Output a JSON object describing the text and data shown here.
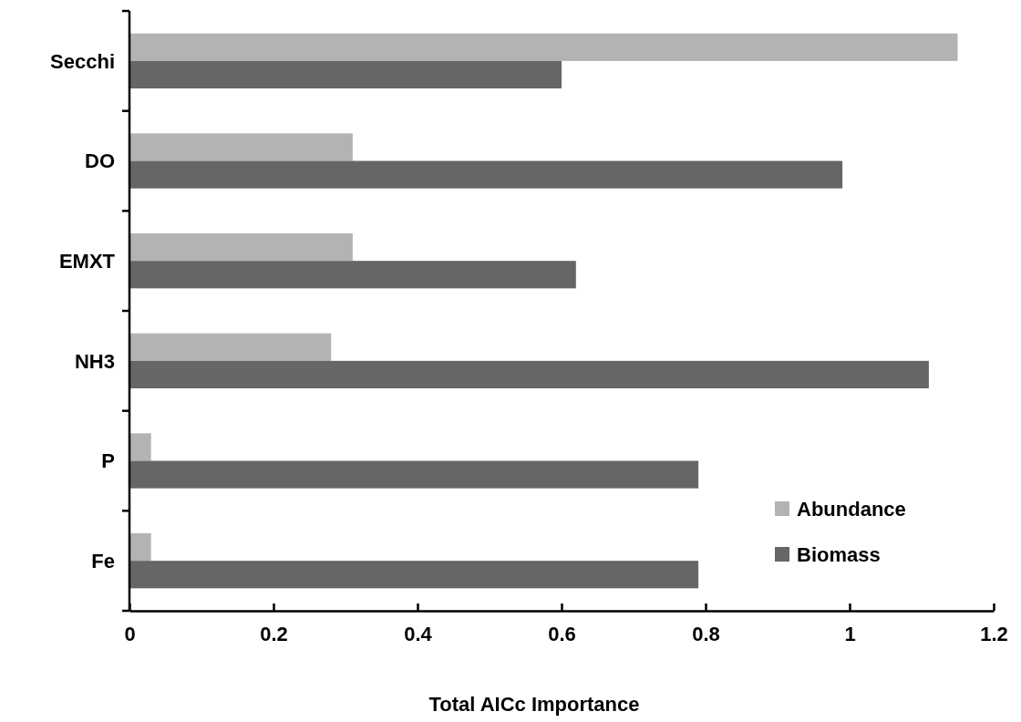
{
  "chart_data": {
    "type": "bar",
    "orientation": "horizontal",
    "xlabel": "Total AICc Importance",
    "categories": [
      "Secchi",
      "DO",
      "EMXT",
      "NH3",
      "P",
      "Fe"
    ],
    "series": [
      {
        "name": "Abundance",
        "color": "#b3b3b3",
        "values": [
          1.15,
          0.31,
          0.31,
          0.28,
          0.03,
          0.03
        ]
      },
      {
        "name": "Biomass",
        "color": "#666666",
        "values": [
          0.6,
          0.99,
          0.62,
          1.11,
          0.79,
          0.79
        ]
      }
    ],
    "xlim": [
      0,
      1.2
    ],
    "xticks": [
      0,
      0.2,
      0.4,
      0.6,
      0.8,
      1,
      1.2
    ],
    "grid": false,
    "legend": "bottom right"
  }
}
